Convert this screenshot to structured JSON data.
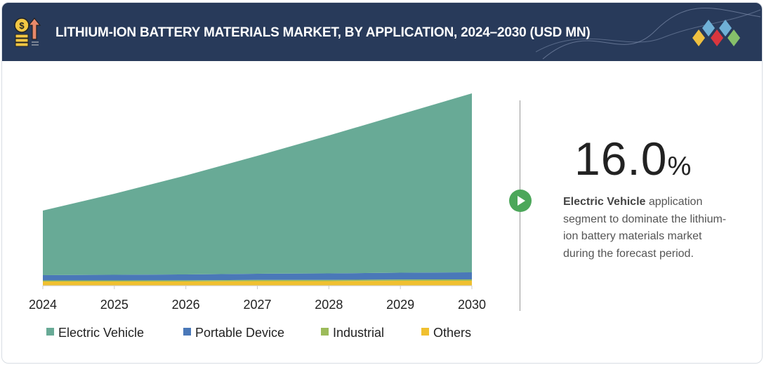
{
  "header": {
    "title": "LITHIUM-ION BATTERY MATERIALS MARKET, BY APPLICATION, 2024–2030 (USD MN)",
    "icon": "money-growth-icon",
    "logo": "diamond-logo"
  },
  "chart_data": {
    "type": "area",
    "stacked": true,
    "title": "LITHIUM-ION BATTERY MATERIALS MARKET, BY APPLICATION, 2024–2030 (USD MN)",
    "categories": [
      "2024",
      "2025",
      "2026",
      "2027",
      "2028",
      "2029",
      "2030"
    ],
    "series": [
      {
        "name": "Others",
        "color": "#f0c030",
        "values": [
          6,
          6,
          6,
          6.5,
          6.5,
          7,
          7
        ]
      },
      {
        "name": "Industrial",
        "color": "#9cbb5a",
        "values": [
          1.5,
          1.5,
          1.6,
          1.7,
          1.8,
          1.9,
          2
        ]
      },
      {
        "name": "Portable Device",
        "color": "#4a78b8",
        "values": [
          7.5,
          8,
          8.4,
          8.8,
          9.2,
          9.6,
          10
        ]
      },
      {
        "name": "Electric Vehicle",
        "color": "#68aa96",
        "values": [
          92,
          115.5,
          141,
          168,
          196.5,
          225.5,
          255
        ]
      }
    ],
    "legend_order": [
      "Electric Vehicle",
      "Portable Device",
      "Industrial",
      "Others"
    ],
    "legend": "bottom",
    "y_axis_shown": false,
    "grid": false,
    "ylim": [
      0,
      280
    ]
  },
  "highlight": {
    "value": "16.0",
    "unit": "%",
    "bold": "Electric Vehicle",
    "text": " application segment to dominate the lithium-ion battery materials market during the forecast period."
  }
}
